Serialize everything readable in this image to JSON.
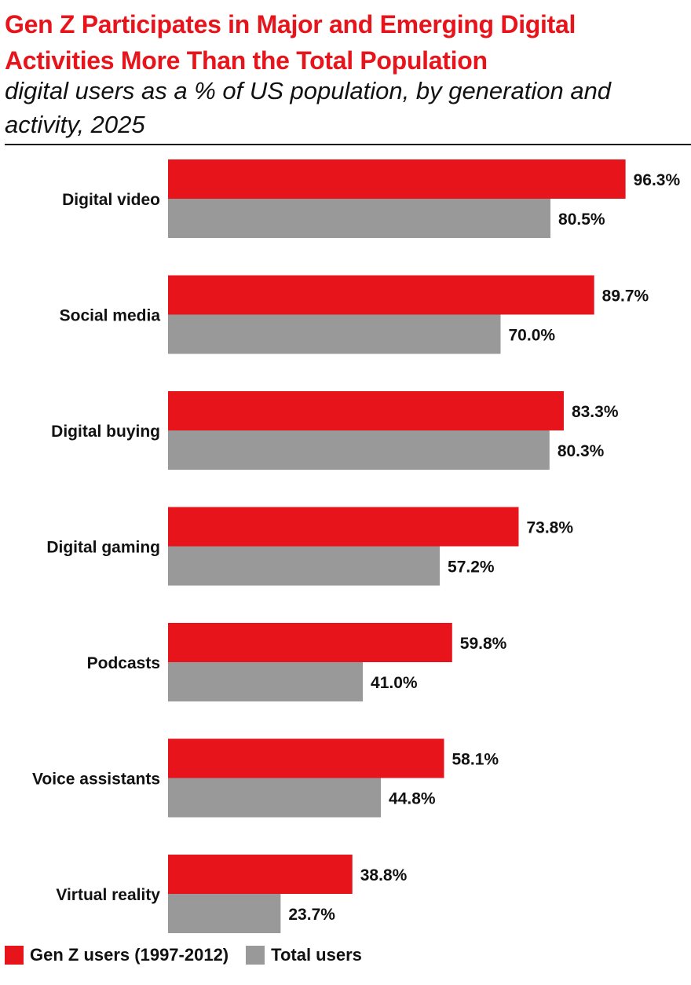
{
  "header": {
    "title": "Gen Z Participates in Major and Emerging Digital Activities More Than the Total Population",
    "subtitle": "digital users as a % of US population, by generation and activity, 2025"
  },
  "colors": {
    "gen_z": "#e8141c",
    "total": "#999999"
  },
  "chart_data": {
    "type": "bar",
    "orientation": "horizontal",
    "categories": [
      "Digital video",
      "Social media",
      "Digital buying",
      "Digital gaming",
      "Podcasts",
      "Voice assistants",
      "Virtual reality"
    ],
    "series": [
      {
        "name": "Gen Z users (1997-2012)",
        "values": [
          96.3,
          89.7,
          83.3,
          73.8,
          59.8,
          58.1,
          38.8
        ]
      },
      {
        "name": "Total users",
        "values": [
          80.5,
          70.0,
          80.3,
          57.2,
          41.0,
          44.8,
          23.7
        ]
      }
    ],
    "value_suffix": "%",
    "xlim": [
      0,
      100
    ],
    "grid": false,
    "legend_position": "bottom-left"
  }
}
